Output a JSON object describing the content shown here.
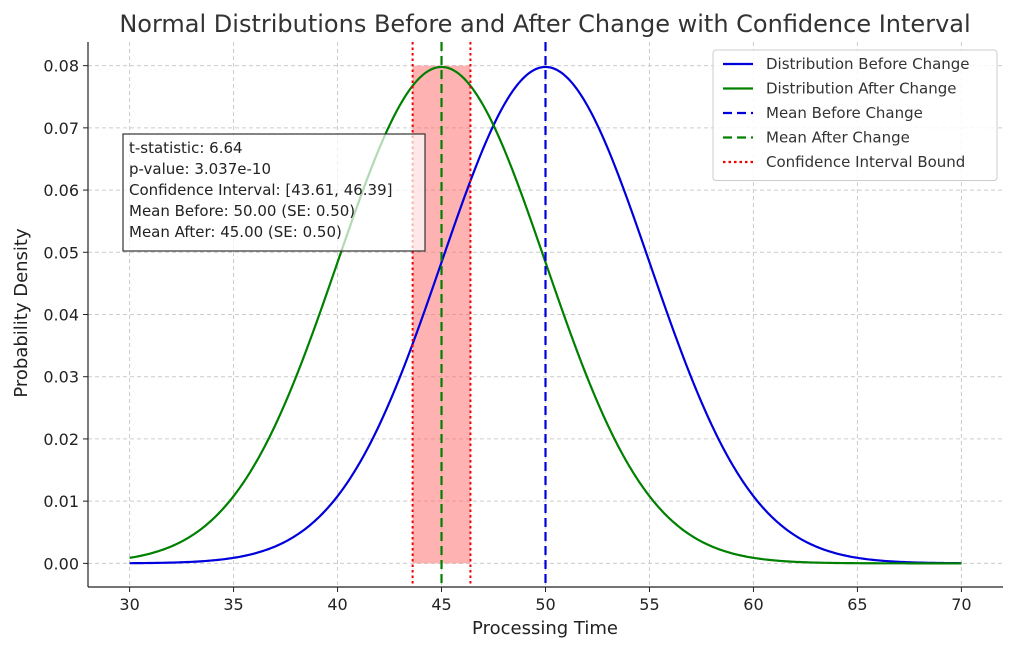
{
  "chart_data": {
    "type": "line",
    "title": "Normal Distributions Before and After Change with Confidence Interval",
    "xlabel": "Processing Time",
    "ylabel": "Probability Density",
    "xlim": [
      28,
      72
    ],
    "ylim": [
      -0.0038,
      0.0838
    ],
    "xticks": [
      30,
      35,
      40,
      45,
      50,
      55,
      60,
      65,
      70
    ],
    "yticks": [
      0.0,
      0.01,
      0.02,
      0.03,
      0.04,
      0.05,
      0.06,
      0.07,
      0.08
    ],
    "xtick_labels": [
      "30",
      "35",
      "40",
      "45",
      "50",
      "55",
      "60",
      "65",
      "70"
    ],
    "ytick_labels": [
      "0.00",
      "0.01",
      "0.02",
      "0.03",
      "0.04",
      "0.05",
      "0.06",
      "0.07",
      "0.08"
    ],
    "grid": true,
    "x_range": [
      30,
      70
    ],
    "series": [
      {
        "name": "Distribution Before Change",
        "kind": "normal-pdf",
        "mean": 50,
        "sd": 5,
        "color": "#0000dd"
      },
      {
        "name": "Distribution After Change",
        "kind": "normal-pdf",
        "mean": 45,
        "sd": 5,
        "color": "#008000"
      }
    ],
    "vlines": [
      {
        "name": "Mean Before Change",
        "x": 50,
        "style": "dashed",
        "color": "#0000dd"
      },
      {
        "name": "Mean After Change",
        "x": 45,
        "style": "dashed",
        "color": "#008000"
      },
      {
        "name": "Confidence Interval Bound",
        "x": 43.61,
        "style": "dotted",
        "color": "#ee0000"
      },
      {
        "name": "Confidence Interval Bound",
        "x": 46.39,
        "style": "dotted",
        "color": "#ee0000"
      }
    ],
    "shaded_region": {
      "x0": 43.61,
      "x1": 46.39,
      "y0": 0.0,
      "y1": 0.08,
      "color": "#ff6666",
      "opacity": 0.5
    },
    "legend_position": "top-right",
    "legend": [
      {
        "label": "Distribution Before Change",
        "style": "solid",
        "color": "#0000dd"
      },
      {
        "label": "Distribution After Change",
        "style": "solid",
        "color": "#008000"
      },
      {
        "label": "Mean Before Change",
        "style": "dashed",
        "color": "#0000dd"
      },
      {
        "label": "Mean After Change",
        "style": "dashed",
        "color": "#008000"
      },
      {
        "label": "Confidence Interval Bound",
        "style": "dotted",
        "color": "#ee0000"
      }
    ],
    "annotation": {
      "position": "upper-left",
      "lines": [
        "t-statistic: 6.64",
        "p-value: 3.037e-10",
        "Confidence Interval: [43.61, 46.39]",
        "Mean Before: 50.00 (SE: 0.50)",
        "Mean After: 45.00 (SE: 0.50)"
      ]
    }
  }
}
